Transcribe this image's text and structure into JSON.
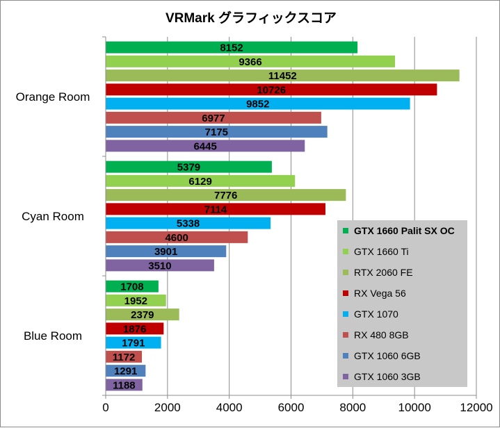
{
  "chart_data": {
    "type": "bar",
    "orientation": "horizontal",
    "title": "VRMark グラフィックスコア",
    "categories": [
      "Orange Room",
      "Cyan Room",
      "Blue Room"
    ],
    "series": [
      {
        "name": "GTX 1660 Palit SX OC",
        "color": "#00b050",
        "values": [
          8152,
          5379,
          1708
        ]
      },
      {
        "name": "GTX 1660 Ti",
        "color": "#92d050",
        "values": [
          9366,
          6129,
          1952
        ]
      },
      {
        "name": "RTX 2060 FE",
        "color": "#9bbb59",
        "values": [
          11452,
          7776,
          2379
        ]
      },
      {
        "name": "RX Vega 56",
        "color": "#c00000",
        "values": [
          10726,
          7114,
          1876
        ]
      },
      {
        "name": "GTX 1070",
        "color": "#00b0f0",
        "values": [
          9852,
          5338,
          1791
        ]
      },
      {
        "name": "RX 480 8GB",
        "color": "#c0504d",
        "values": [
          6977,
          4600,
          1172
        ]
      },
      {
        "name": "GTX 1060 6GB",
        "color": "#4f81bd",
        "values": [
          7175,
          3901,
          1291
        ]
      },
      {
        "name": "GTX 1060 3GB",
        "color": "#8064a2",
        "values": [
          6445,
          3510,
          1188
        ]
      }
    ],
    "xlim": [
      0,
      12000
    ],
    "xticks": [
      "0",
      "2000",
      "4000",
      "6000",
      "8000",
      "10000",
      "12000"
    ],
    "grid": true,
    "legend_position": "bottom-right"
  }
}
